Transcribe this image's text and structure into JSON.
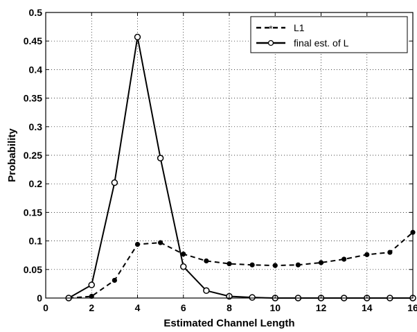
{
  "chart_data": {
    "type": "line",
    "xlabel": "Estimated Channel Length",
    "ylabel": "Probability",
    "xlim": [
      0,
      16
    ],
    "ylim": [
      0,
      0.5
    ],
    "xticks": [
      0,
      2,
      4,
      6,
      8,
      10,
      12,
      14,
      16
    ],
    "yticks": [
      0,
      0.05,
      0.1,
      0.15,
      0.2,
      0.25,
      0.3,
      0.35,
      0.4,
      0.45,
      0.5
    ],
    "grid": true,
    "legend_position": "top-right",
    "series": [
      {
        "name": "L1",
        "style": "dashed",
        "marker": "star",
        "x": [
          1,
          2,
          3,
          4,
          5,
          6,
          7,
          8,
          9,
          10,
          11,
          12,
          13,
          14,
          15,
          16
        ],
        "y": [
          0.0,
          0.003,
          0.031,
          0.094,
          0.097,
          0.077,
          0.065,
          0.06,
          0.058,
          0.057,
          0.058,
          0.062,
          0.068,
          0.076,
          0.08,
          0.115
        ]
      },
      {
        "name": "final est. of L",
        "style": "solid",
        "marker": "circle",
        "x": [
          1,
          2,
          3,
          4,
          5,
          6,
          7,
          8,
          9,
          10,
          11,
          12,
          13,
          14,
          15,
          16
        ],
        "y": [
          0.0,
          0.023,
          0.202,
          0.457,
          0.245,
          0.055,
          0.013,
          0.003,
          0.001,
          0.0,
          0.0,
          0.0,
          0.0,
          0.0,
          0.0,
          0.0
        ]
      }
    ]
  }
}
